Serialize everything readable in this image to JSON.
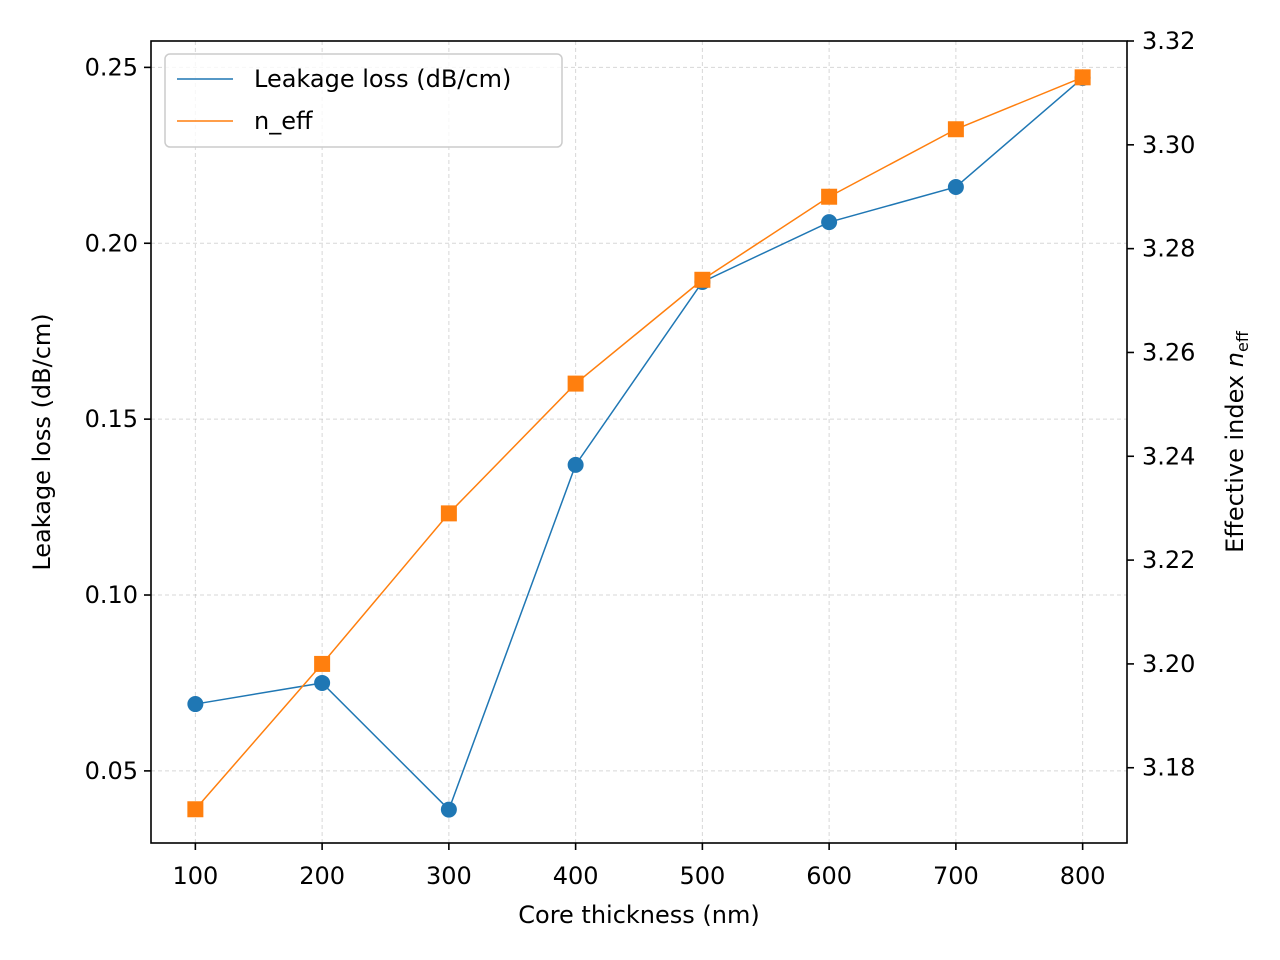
{
  "chart_data": {
    "type": "line",
    "title": "",
    "xlabel": "Core thickness (nm)",
    "ylabel": "Leakage loss (dB/cm)",
    "ylabel_right": {
      "main": "Effective index ",
      "italic": "n",
      "sub": "eff"
    },
    "x": [
      100,
      200,
      300,
      400,
      500,
      600,
      700,
      800
    ],
    "xlim": [
      65,
      835
    ],
    "xticks": [
      "100",
      "200",
      "300",
      "400",
      "500",
      "600",
      "700",
      "800"
    ],
    "ylim": [
      0.0295,
      0.2575
    ],
    "yticks": [
      "0.05",
      "0.10",
      "0.15",
      "0.20",
      "0.25"
    ],
    "ylim_right": [
      3.1655,
      3.32
    ],
    "yticks_right": [
      "3.18",
      "3.20",
      "3.22",
      "3.24",
      "3.26",
      "3.28",
      "3.30",
      "3.32"
    ],
    "grid": true,
    "legend_position": "top-left",
    "series": [
      {
        "name": "Leakage loss (dB/cm)",
        "axis": "left",
        "marker": "circle",
        "color": "#1f77b4",
        "values": [
          0.069,
          0.075,
          0.039,
          0.137,
          0.189,
          0.206,
          0.216,
          0.247
        ]
      },
      {
        "name": "n_eff",
        "axis": "right",
        "marker": "square",
        "color": "#ff7f0e",
        "values": [
          3.172,
          3.2,
          3.229,
          3.254,
          3.274,
          3.29,
          3.303,
          3.313
        ]
      }
    ]
  }
}
